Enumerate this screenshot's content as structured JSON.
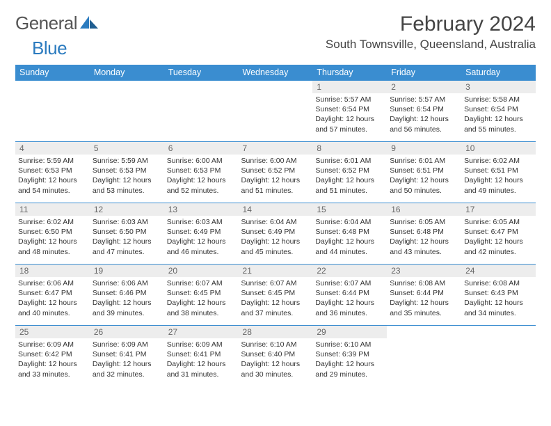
{
  "brand": {
    "name1": "General",
    "name2": "Blue"
  },
  "title": "February 2024",
  "location": "South Townsville, Queensland, Australia",
  "colors": {
    "header_bg": "#3a8dd0",
    "header_text": "#ffffff",
    "daynum_bg": "#ededed",
    "border": "#3a8dd0",
    "logo_gray": "#555555",
    "logo_blue": "#2b7bbf",
    "body_text": "#333333"
  },
  "dow": [
    "Sunday",
    "Monday",
    "Tuesday",
    "Wednesday",
    "Thursday",
    "Friday",
    "Saturday"
  ],
  "layout": {
    "columns": 7,
    "rows": 5,
    "first_weekday_index": 4,
    "days_in_month": 29
  },
  "days": [
    {
      "n": 1,
      "sr": "5:57 AM",
      "ss": "6:54 PM",
      "dl": "12 hours and 57 minutes."
    },
    {
      "n": 2,
      "sr": "5:57 AM",
      "ss": "6:54 PM",
      "dl": "12 hours and 56 minutes."
    },
    {
      "n": 3,
      "sr": "5:58 AM",
      "ss": "6:54 PM",
      "dl": "12 hours and 55 minutes."
    },
    {
      "n": 4,
      "sr": "5:59 AM",
      "ss": "6:53 PM",
      "dl": "12 hours and 54 minutes."
    },
    {
      "n": 5,
      "sr": "5:59 AM",
      "ss": "6:53 PM",
      "dl": "12 hours and 53 minutes."
    },
    {
      "n": 6,
      "sr": "6:00 AM",
      "ss": "6:53 PM",
      "dl": "12 hours and 52 minutes."
    },
    {
      "n": 7,
      "sr": "6:00 AM",
      "ss": "6:52 PM",
      "dl": "12 hours and 51 minutes."
    },
    {
      "n": 8,
      "sr": "6:01 AM",
      "ss": "6:52 PM",
      "dl": "12 hours and 51 minutes."
    },
    {
      "n": 9,
      "sr": "6:01 AM",
      "ss": "6:51 PM",
      "dl": "12 hours and 50 minutes."
    },
    {
      "n": 10,
      "sr": "6:02 AM",
      "ss": "6:51 PM",
      "dl": "12 hours and 49 minutes."
    },
    {
      "n": 11,
      "sr": "6:02 AM",
      "ss": "6:50 PM",
      "dl": "12 hours and 48 minutes."
    },
    {
      "n": 12,
      "sr": "6:03 AM",
      "ss": "6:50 PM",
      "dl": "12 hours and 47 minutes."
    },
    {
      "n": 13,
      "sr": "6:03 AM",
      "ss": "6:49 PM",
      "dl": "12 hours and 46 minutes."
    },
    {
      "n": 14,
      "sr": "6:04 AM",
      "ss": "6:49 PM",
      "dl": "12 hours and 45 minutes."
    },
    {
      "n": 15,
      "sr": "6:04 AM",
      "ss": "6:48 PM",
      "dl": "12 hours and 44 minutes."
    },
    {
      "n": 16,
      "sr": "6:05 AM",
      "ss": "6:48 PM",
      "dl": "12 hours and 43 minutes."
    },
    {
      "n": 17,
      "sr": "6:05 AM",
      "ss": "6:47 PM",
      "dl": "12 hours and 42 minutes."
    },
    {
      "n": 18,
      "sr": "6:06 AM",
      "ss": "6:47 PM",
      "dl": "12 hours and 40 minutes."
    },
    {
      "n": 19,
      "sr": "6:06 AM",
      "ss": "6:46 PM",
      "dl": "12 hours and 39 minutes."
    },
    {
      "n": 20,
      "sr": "6:07 AM",
      "ss": "6:45 PM",
      "dl": "12 hours and 38 minutes."
    },
    {
      "n": 21,
      "sr": "6:07 AM",
      "ss": "6:45 PM",
      "dl": "12 hours and 37 minutes."
    },
    {
      "n": 22,
      "sr": "6:07 AM",
      "ss": "6:44 PM",
      "dl": "12 hours and 36 minutes."
    },
    {
      "n": 23,
      "sr": "6:08 AM",
      "ss": "6:44 PM",
      "dl": "12 hours and 35 minutes."
    },
    {
      "n": 24,
      "sr": "6:08 AM",
      "ss": "6:43 PM",
      "dl": "12 hours and 34 minutes."
    },
    {
      "n": 25,
      "sr": "6:09 AM",
      "ss": "6:42 PM",
      "dl": "12 hours and 33 minutes."
    },
    {
      "n": 26,
      "sr": "6:09 AM",
      "ss": "6:41 PM",
      "dl": "12 hours and 32 minutes."
    },
    {
      "n": 27,
      "sr": "6:09 AM",
      "ss": "6:41 PM",
      "dl": "12 hours and 31 minutes."
    },
    {
      "n": 28,
      "sr": "6:10 AM",
      "ss": "6:40 PM",
      "dl": "12 hours and 30 minutes."
    },
    {
      "n": 29,
      "sr": "6:10 AM",
      "ss": "6:39 PM",
      "dl": "12 hours and 29 minutes."
    }
  ],
  "labels": {
    "sunrise": "Sunrise:",
    "sunset": "Sunset:",
    "daylight": "Daylight:"
  }
}
